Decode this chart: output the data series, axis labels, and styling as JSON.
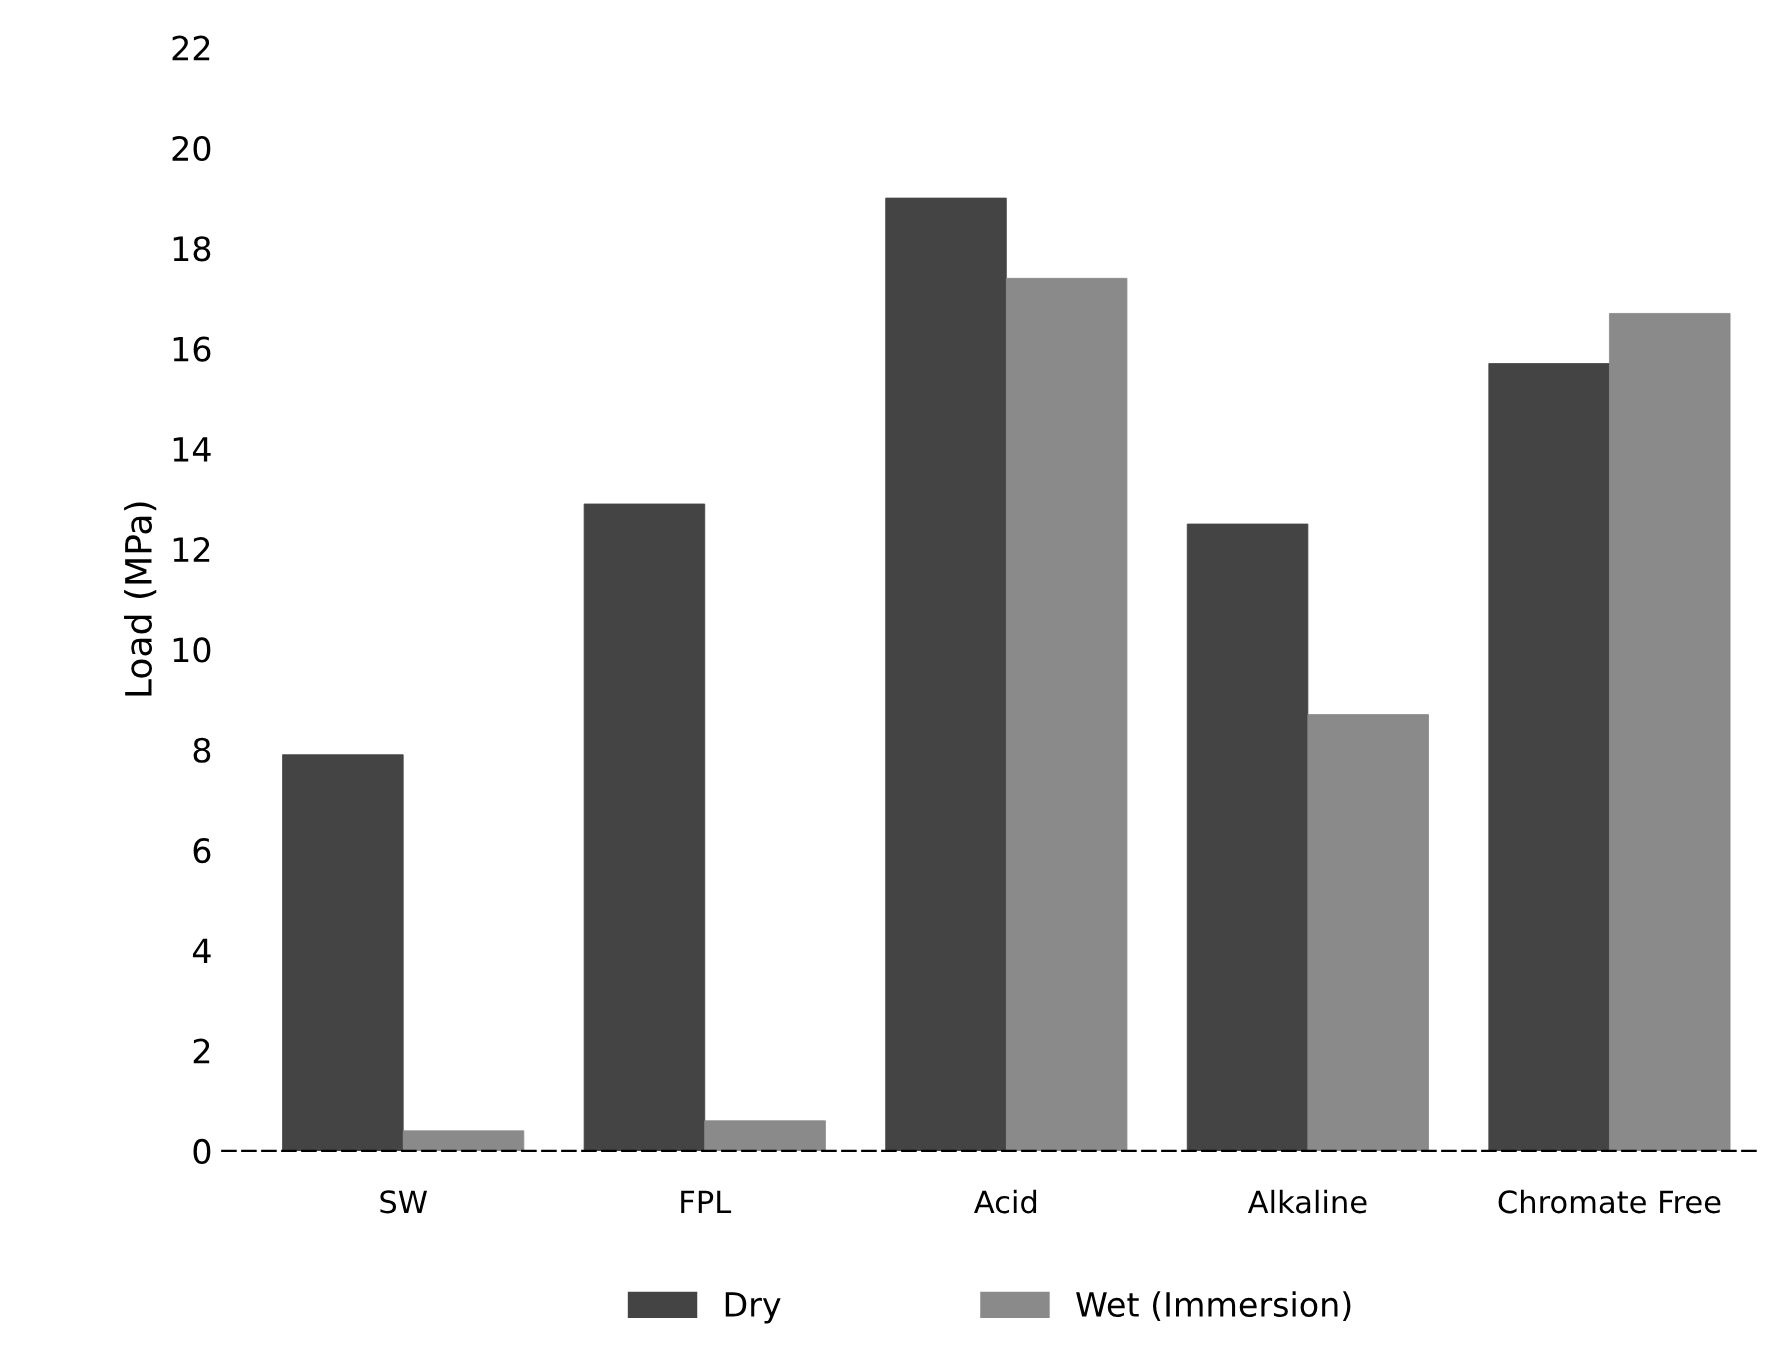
{
  "chart_data": {
    "type": "bar",
    "ylabel": "Load (MPa)",
    "categories": [
      "SW",
      "FPL",
      "Acid",
      "Alkaline",
      "Chromate Free"
    ],
    "series": [
      {
        "name": "Dry",
        "color": "#444444",
        "values": [
          7.9,
          12.9,
          19.0,
          12.5,
          15.7
        ]
      },
      {
        "name": "Wet (Immersion)",
        "color": "#8a8a8a",
        "values": [
          0.4,
          0.6,
          17.4,
          8.7,
          16.7
        ]
      }
    ],
    "ylim": [
      0,
      22
    ],
    "yticks": [
      0,
      2,
      4,
      6,
      8,
      10,
      12,
      14,
      16,
      18,
      20,
      22
    ],
    "grid": false,
    "legend": "bottom"
  }
}
